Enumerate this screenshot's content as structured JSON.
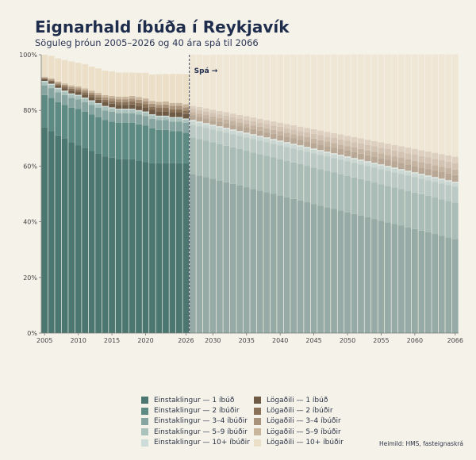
{
  "title": "Eignarhald íbúða í Reykjavík",
  "subtitle": "Söguleg þróun 2005–2026 og 40 ára spá til 2066",
  "source": "Heimild: HMS, fasteignaskrá",
  "chart_data": {
    "type": "bar",
    "stacked": true,
    "title": "Eignarhald íbúða í Reykjavík",
    "subtitle": "Söguleg þróun 2005–2026 og 40 ára spá til 2066",
    "x_start": 2005,
    "x_end": 2066,
    "forecast_start": 2026,
    "forecast_label": "Spá →",
    "ylim": [
      0,
      100
    ],
    "y_ticks": [
      "0%",
      "20%",
      "40%",
      "60%",
      "80%",
      "100%"
    ],
    "x_ticks": [
      2005,
      2010,
      2015,
      2020,
      2026,
      2030,
      2035,
      2040,
      2045,
      2050,
      2055,
      2060,
      2066
    ],
    "legend_position": "bottom",
    "series": [
      {
        "name": "Einstaklingur — 1 íbúð",
        "color": "#4b7770",
        "color_forecast": "#96aba5",
        "values": [
          74,
          72.5,
          71,
          70,
          68.5,
          67.5,
          66.5,
          65.5,
          64.5,
          63.5,
          63,
          62.5,
          62.5,
          62.5,
          62,
          61.5,
          61,
          61,
          61,
          61,
          61,
          61,
          57.2,
          56.6,
          56.0,
          55.4,
          54.8,
          54.2,
          53.6,
          53.0,
          52.4,
          51.8,
          51.2,
          50.6,
          50.0,
          49.4,
          48.8,
          48.2,
          47.6,
          47.0,
          46.4,
          45.8,
          45.2,
          44.6,
          44.0,
          43.4,
          42.8,
          42.2,
          41.6,
          41.0,
          40.4,
          39.8,
          39.2,
          38.6,
          38.0,
          37.4,
          36.8,
          36.2,
          35.6,
          35.0,
          34.4,
          33.8
        ]
      },
      {
        "name": "Einstaklingur — 2 íbúðir",
        "color": "#5e8a84",
        "color_forecast": "#a9bcb6",
        "values": [
          11.5,
          12,
          12,
          12,
          12.5,
          13,
          13,
          13,
          13,
          13,
          13,
          13,
          13,
          13,
          13,
          13,
          12.5,
          12,
          12,
          11.5,
          11.5,
          11,
          13.1,
          13.1,
          13.1,
          13.1,
          13.1,
          13.1,
          13.1,
          13.1,
          13.1,
          13.1,
          13.1,
          13.1,
          13.1,
          13.1,
          13.1,
          13.1,
          13.1,
          13.1,
          13.1,
          13.1,
          13.1,
          13.1,
          13.1,
          13.1,
          13.1,
          13.1,
          13.1,
          13.1,
          13.1,
          13.1,
          13.1,
          13.1,
          13.1,
          13.1,
          13.1,
          13.1,
          13.1,
          13.1,
          13.1,
          13.1
        ]
      },
      {
        "name": "Einstaklingur — 3–4 íbúðir",
        "color": "#86a5a0",
        "color_forecast": "#bccac6",
        "values": [
          3.5,
          3.5,
          3.5,
          3.5,
          3.5,
          3.5,
          3.5,
          3.5,
          3.5,
          3.5,
          3.5,
          3.5,
          3.5,
          3.5,
          3.5,
          3.5,
          3.5,
          3.5,
          3.5,
          3.5,
          3.5,
          3.5,
          4.5,
          4.52,
          4.55,
          4.58,
          4.61,
          4.64,
          4.67,
          4.7,
          4.73,
          4.76,
          4.79,
          4.82,
          4.85,
          4.88,
          4.91,
          4.94,
          4.97,
          5.0,
          5.03,
          5.06,
          5.09,
          5.12,
          5.15,
          5.18,
          5.21,
          5.24,
          5.27,
          5.3,
          5.33,
          5.36,
          5.39,
          5.42,
          5.45,
          5.48,
          5.51,
          5.54,
          5.57,
          5.6,
          5.63,
          5.66
        ]
      },
      {
        "name": "Einstaklingur — 5–9 íbúðir",
        "color": "#aac1bc",
        "color_forecast": "#cad6d2",
        "values": [
          1.2,
          1.2,
          1.2,
          1.2,
          1.2,
          1.2,
          1.2,
          1.2,
          1.2,
          1.2,
          1.2,
          1.2,
          1.2,
          1.2,
          1.2,
          1.2,
          1.2,
          1.2,
          1.2,
          1.2,
          1.2,
          1.2,
          1.3,
          1.3,
          1.3,
          1.3,
          1.3,
          1.3,
          1.3,
          1.3,
          1.3,
          1.3,
          1.3,
          1.3,
          1.3,
          1.3,
          1.3,
          1.3,
          1.3,
          1.3,
          1.3,
          1.3,
          1.3,
          1.3,
          1.3,
          1.3,
          1.3,
          1.3,
          1.3,
          1.3,
          1.3,
          1.3,
          1.3,
          1.3,
          1.3,
          1.3,
          1.3,
          1.3,
          1.3,
          1.3,
          1.3,
          1.3
        ]
      },
      {
        "name": "Einstaklingur — 10+ íbúðir",
        "color": "#cddcd8",
        "color_forecast": "#dbe3df",
        "values": [
          0.4,
          0.4,
          0.4,
          0.4,
          0.4,
          0.4,
          0.4,
          0.4,
          0.4,
          0.4,
          0.4,
          0.4,
          0.4,
          0.4,
          0.4,
          0.4,
          0.4,
          0.4,
          0.4,
          0.4,
          0.4,
          0.4,
          0.5,
          0.5,
          0.5,
          0.5,
          0.5,
          0.5,
          0.5,
          0.5,
          0.5,
          0.5,
          0.5,
          0.5,
          0.5,
          0.5,
          0.5,
          0.5,
          0.5,
          0.5,
          0.5,
          0.5,
          0.5,
          0.5,
          0.5,
          0.5,
          0.5,
          0.5,
          0.5,
          0.5,
          0.5,
          0.5,
          0.5,
          0.5,
          0.5,
          0.5,
          0.5,
          0.5,
          0.5,
          0.5,
          0.5,
          0.5
        ]
      },
      {
        "name": "Lögaðili — 1 íbúð",
        "color": "#6f5a45",
        "color_forecast": "#b9a895",
        "values": [
          0.6,
          0.7,
          0.8,
          0.9,
          1.0,
          1.0,
          1.1,
          1.2,
          1.2,
          1.3,
          1.3,
          1.4,
          1.4,
          1.5,
          1.5,
          1.5,
          1.6,
          1.6,
          1.6,
          1.6,
          1.6,
          1.6,
          1.6,
          1.62,
          1.64,
          1.66,
          1.68,
          1.7,
          1.72,
          1.74,
          1.76,
          1.78,
          1.8,
          1.82,
          1.84,
          1.86,
          1.88,
          1.9,
          1.92,
          1.94,
          1.96,
          1.98,
          2.0,
          2.02,
          2.04,
          2.06,
          2.08,
          2.1,
          2.12,
          2.14,
          2.16,
          2.18,
          2.2,
          2.22,
          2.24,
          2.26,
          2.28,
          2.3,
          2.32,
          2.34,
          2.36,
          2.38
        ]
      },
      {
        "name": "Lögaðili — 2 íbúðir",
        "color": "#8a7258",
        "color_forecast": "#c6b4a2",
        "values": [
          0.3,
          0.4,
          0.5,
          0.6,
          0.7,
          0.7,
          0.8,
          0.8,
          0.9,
          0.9,
          1.0,
          1.0,
          1.0,
          1.1,
          1.1,
          1.1,
          1.1,
          1.2,
          1.2,
          1.2,
          1.2,
          1.2,
          1.2,
          1.22,
          1.24,
          1.26,
          1.28,
          1.3,
          1.32,
          1.34,
          1.36,
          1.38,
          1.4,
          1.42,
          1.44,
          1.46,
          1.48,
          1.5,
          1.52,
          1.54,
          1.56,
          1.58,
          1.6,
          1.62,
          1.64,
          1.66,
          1.68,
          1.7,
          1.72,
          1.74,
          1.76,
          1.78,
          1.8,
          1.82,
          1.84,
          1.86,
          1.88,
          1.9,
          1.92,
          1.94,
          1.96,
          1.98
        ]
      },
      {
        "name": "Lögaðili — 3–4 íbúðir",
        "color": "#a9927a",
        "color_forecast": "#d2c3b3",
        "values": [
          0.3,
          0.4,
          0.5,
          0.6,
          0.6,
          0.7,
          0.7,
          0.8,
          0.8,
          0.9,
          0.9,
          1.0,
          1.0,
          1.0,
          1.1,
          1.1,
          1.1,
          1.1,
          1.2,
          1.2,
          1.2,
          1.2,
          1.2,
          1.23,
          1.26,
          1.29,
          1.32,
          1.35,
          1.38,
          1.41,
          1.44,
          1.47,
          1.5,
          1.53,
          1.56,
          1.59,
          1.62,
          1.65,
          1.68,
          1.71,
          1.74,
          1.77,
          1.8,
          1.83,
          1.86,
          1.89,
          1.92,
          1.95,
          1.98,
          2.01,
          2.04,
          2.07,
          2.1,
          2.13,
          2.16,
          2.19,
          2.22,
          2.25,
          2.28,
          2.31,
          2.34,
          2.37
        ]
      },
      {
        "name": "Lögaðili — 5–9 íbúðir",
        "color": "#c9b59b",
        "color_forecast": "#ddd0c0",
        "values": [
          0.3,
          0.4,
          0.5,
          0.5,
          0.6,
          0.6,
          0.7,
          0.7,
          0.8,
          0.8,
          0.9,
          0.9,
          0.9,
          1.0,
          1.0,
          1.0,
          1.0,
          1.1,
          1.1,
          1.1,
          1.1,
          1.1,
          1.1,
          1.13,
          1.16,
          1.19,
          1.22,
          1.25,
          1.28,
          1.31,
          1.34,
          1.37,
          1.4,
          1.43,
          1.46,
          1.49,
          1.52,
          1.55,
          1.58,
          1.61,
          1.64,
          1.67,
          1.7,
          1.73,
          1.76,
          1.79,
          1.82,
          1.85,
          1.88,
          1.91,
          1.94,
          1.97,
          2.0,
          2.03,
          2.06,
          2.09,
          2.12,
          2.15,
          2.18,
          2.21,
          2.24,
          2.27
        ]
      },
      {
        "name": "Lögaðili — 10+ íbúðir",
        "color": "#ecdfc8",
        "color_forecast": "#efe6d6",
        "values": [
          7.9,
          8.1,
          8.3,
          8.4,
          8.6,
          8.5,
          8.7,
          8.6,
          8.8,
          8.8,
          8.8,
          8.7,
          8.7,
          8.4,
          8.7,
          9.2,
          9.5,
          9.9,
          9.9,
          10.4,
          10.4,
          10.9,
          18.3,
          18.8,
          19.2,
          19.7,
          20.2,
          20.7,
          21.1,
          21.6,
          22.1,
          22.6,
          23.0,
          23.5,
          24.0,
          24.5,
          24.9,
          25.4,
          25.9,
          26.4,
          26.8,
          27.3,
          27.8,
          28.3,
          28.7,
          29.2,
          29.7,
          30.2,
          30.6,
          31.1,
          31.6,
          32.1,
          32.5,
          33.0,
          33.5,
          34.0,
          34.4,
          34.9,
          35.4,
          35.9,
          36.3,
          36.8
        ]
      }
    ]
  }
}
